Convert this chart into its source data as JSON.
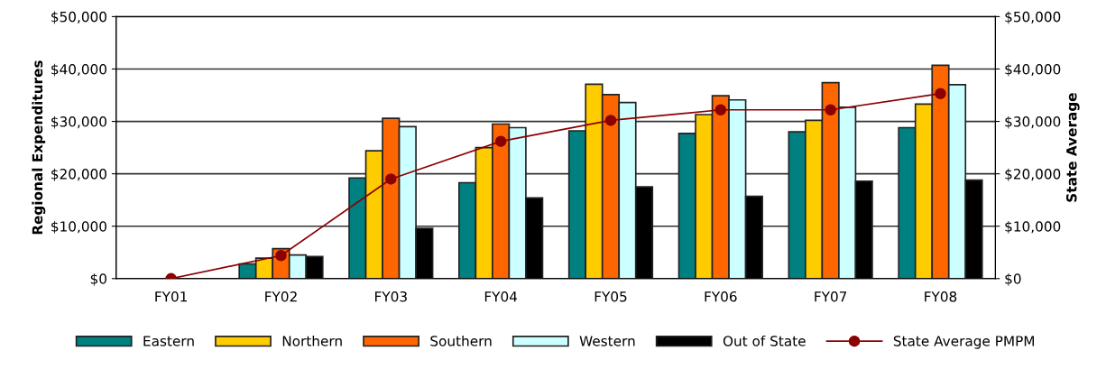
{
  "chart_data": {
    "type": "bar",
    "ylabel": "Regional Expenditures",
    "y2label": "State Average",
    "categories": [
      "FY01",
      "FY02",
      "FY03",
      "FY04",
      "FY05",
      "FY06",
      "FY07",
      "FY08"
    ],
    "series": [
      {
        "name": "Eastern",
        "color": "#008080",
        "values": [
          null,
          2800,
          19200,
          18300,
          28200,
          27700,
          28000,
          28800
        ]
      },
      {
        "name": "Northern",
        "color": "#ffcc00",
        "values": [
          null,
          3900,
          24400,
          25000,
          37100,
          31300,
          30200,
          33300
        ]
      },
      {
        "name": "Southern",
        "color": "#ff6600",
        "values": [
          null,
          5700,
          30600,
          29500,
          35100,
          34900,
          37400,
          40700
        ]
      },
      {
        "name": "Western",
        "color": "#ccffff",
        "values": [
          null,
          4500,
          29000,
          28800,
          33600,
          34100,
          32700,
          37000
        ]
      },
      {
        "name": "Out of State",
        "color": "#000000",
        "values": [
          null,
          4200,
          9600,
          15400,
          17500,
          15700,
          18600,
          18800
        ]
      },
      {
        "name": "State Average PMPM",
        "type": "line",
        "axis": "y2",
        "color": "#8b0000",
        "marker": "circle",
        "values": [
          0,
          4400,
          19000,
          26200,
          30200,
          32200,
          32200,
          35300
        ]
      }
    ],
    "ylim": [
      0,
      50000
    ],
    "yticks": [
      {
        "value": 0,
        "label": "$0"
      },
      {
        "value": 10000,
        "label": "$10,000"
      },
      {
        "value": 20000,
        "label": "$20,000"
      },
      {
        "value": 30000,
        "label": "$30,000"
      },
      {
        "value": 40000,
        "label": "$40,000"
      },
      {
        "value": 50000,
        "label": "$50,000"
      }
    ],
    "y2lim": [
      0,
      50000
    ],
    "y2ticks": [
      {
        "value": 0,
        "label": "$0"
      },
      {
        "value": 10000,
        "label": "$10,000"
      },
      {
        "value": 20000,
        "label": "$20,000"
      },
      {
        "value": 30000,
        "label": "$30,000"
      },
      {
        "value": 40000,
        "label": "$40,000"
      },
      {
        "value": 50000,
        "label": "$50,000"
      }
    ],
    "grid": "y",
    "legend": "bottom"
  }
}
